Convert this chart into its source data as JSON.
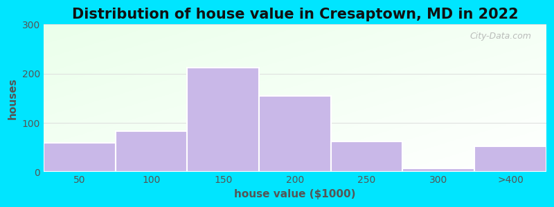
{
  "title": "Distribution of house value in Cresaptown, MD in 2022",
  "xlabel": "house value ($1000)",
  "ylabel": "houses",
  "bar_labels": [
    "50",
    "100",
    "150",
    "200",
    "250",
    "300",
    ">400"
  ],
  "bar_heights": [
    60,
    83,
    212,
    155,
    62,
    7,
    52
  ],
  "bar_color": "#c9b8e8",
  "bar_edgecolor": "#ffffff",
  "bar_linewidth": 1.5,
  "ylim": [
    0,
    300
  ],
  "yticks": [
    0,
    100,
    200,
    300
  ],
  "background_outer": "#00e5ff",
  "background_gradient_left": "#d8edd8",
  "background_gradient_right": "#f5fff5",
  "background_top": "#e8f5e8",
  "background_bottom": "#ffffff",
  "grid_color": "#dddddd",
  "title_fontsize": 15,
  "axis_label_fontsize": 11,
  "tick_fontsize": 10,
  "watermark_text": "City-Data.com",
  "tick_color": "#555555",
  "label_color": "#555555"
}
